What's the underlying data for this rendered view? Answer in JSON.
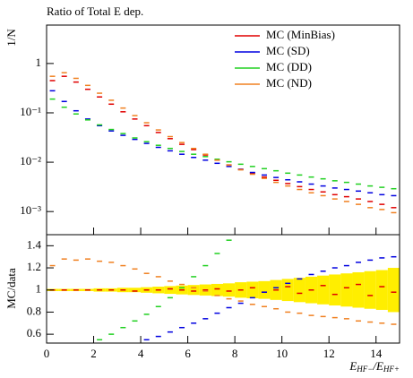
{
  "chart_data": [
    {
      "type": "scatter",
      "title": "Ratio of Total E dep.",
      "ylabel": "1/N",
      "log_y": true,
      "legend": "upper right",
      "x": [
        0.25,
        0.75,
        1.25,
        1.75,
        2.25,
        2.75,
        3.25,
        3.75,
        4.25,
        4.75,
        5.25,
        5.75,
        6.25,
        6.75,
        7.25,
        7.75,
        8.25,
        8.75,
        9.25,
        9.75,
        10.25,
        10.75,
        11.25,
        11.75,
        12.25,
        12.75,
        13.25,
        13.75,
        14.25,
        14.75
      ],
      "xlim": [
        0,
        15
      ],
      "ylim": [
        0.00034,
        6
      ],
      "yticks": [
        1,
        {
          "value": 0.1,
          "label": "10⁻¹"
        },
        {
          "value": 0.01,
          "label": "10⁻²"
        },
        {
          "value": 0.001,
          "label": "10⁻³"
        }
      ],
      "series": [
        {
          "name": "MC (MinBias)",
          "color": "#e00000",
          "values": [
            0.45,
            0.55,
            0.42,
            0.3,
            0.21,
            0.15,
            0.105,
            0.075,
            0.055,
            0.04,
            0.03,
            0.023,
            0.018,
            0.014,
            0.011,
            0.0088,
            0.0072,
            0.006,
            0.005,
            0.0043,
            0.0037,
            0.0032,
            0.0028,
            0.0025,
            0.0022,
            0.002,
            0.0018,
            0.0016,
            0.0014,
            0.0012
          ]
        },
        {
          "name": "MC (SD)",
          "color": "#0000e0",
          "values": [
            0.28,
            0.17,
            0.11,
            0.075,
            0.055,
            0.043,
            0.035,
            0.029,
            0.024,
            0.02,
            0.017,
            0.0145,
            0.0125,
            0.011,
            0.0095,
            0.0082,
            0.0071,
            0.0062,
            0.0055,
            0.0049,
            0.0044,
            0.004,
            0.0036,
            0.0033,
            0.003,
            0.0028,
            0.0026,
            0.0024,
            0.0022,
            0.0021
          ]
        },
        {
          "name": "MC (DD)",
          "color": "#20d020",
          "values": [
            0.19,
            0.13,
            0.095,
            0.072,
            0.057,
            0.046,
            0.038,
            0.031,
            0.026,
            0.022,
            0.019,
            0.0165,
            0.0145,
            0.013,
            0.0115,
            0.0102,
            0.0091,
            0.0082,
            0.0074,
            0.0067,
            0.006,
            0.0055,
            0.005,
            0.0046,
            0.0042,
            0.0039,
            0.0036,
            0.0033,
            0.0031,
            0.0029
          ]
        },
        {
          "name": "MC (ND)",
          "color": "#f08020",
          "values": [
            0.55,
            0.65,
            0.5,
            0.36,
            0.25,
            0.18,
            0.125,
            0.088,
            0.063,
            0.045,
            0.033,
            0.025,
            0.019,
            0.0145,
            0.011,
            0.0087,
            0.007,
            0.0057,
            0.0047,
            0.0039,
            0.0033,
            0.0028,
            0.0024,
            0.0021,
            0.0018,
            0.0016,
            0.0014,
            0.0012,
            0.0011,
            0.00095
          ]
        }
      ]
    },
    {
      "type": "scatter",
      "ylabel": "MC/data",
      "xlabel": [
        "E",
        "HF−",
        "/E",
        "HF+"
      ],
      "x": [
        0.25,
        0.75,
        1.25,
        1.75,
        2.25,
        2.75,
        3.25,
        3.75,
        4.25,
        4.75,
        5.25,
        5.75,
        6.25,
        6.75,
        7.25,
        7.75,
        8.25,
        8.75,
        9.25,
        9.75,
        10.25,
        10.75,
        11.25,
        11.75,
        12.25,
        12.75,
        13.25,
        13.75,
        14.25,
        14.75
      ],
      "xlim": [
        0,
        15
      ],
      "xticks": [
        0,
        2,
        4,
        6,
        8,
        10,
        12,
        14
      ],
      "ylim": [
        0.52,
        1.5
      ],
      "yticks": [
        0.6,
        0.8,
        1,
        1.2,
        1.4
      ],
      "band": {
        "color": "#ffee00",
        "values": [
          1,
          1,
          1,
          1,
          1,
          1,
          1,
          1,
          1,
          1,
          1,
          1,
          1,
          1,
          1,
          1,
          1,
          1,
          1,
          1,
          1,
          1,
          1,
          1,
          1,
          1,
          1,
          1,
          1,
          1
        ],
        "errors": [
          0.01,
          0.01,
          0.01,
          0.01,
          0.015,
          0.015,
          0.02,
          0.02,
          0.025,
          0.03,
          0.035,
          0.04,
          0.045,
          0.05,
          0.055,
          0.06,
          0.07,
          0.075,
          0.08,
          0.09,
          0.1,
          0.11,
          0.12,
          0.13,
          0.14,
          0.15,
          0.16,
          0.17,
          0.18,
          0.2
        ]
      },
      "series": [
        {
          "name": "MC (MinBias)",
          "color": "#e00000",
          "values": [
            1,
            1,
            1,
            1,
            1,
            1,
            1,
            0.99,
            1,
            1,
            1.01,
            1,
            0.99,
            1,
            1.01,
            0.99,
            1,
            1.02,
            0.98,
            1,
            1.03,
            0.97,
            1,
            1.04,
            0.96,
            1.02,
            1.05,
            0.95,
            1.03,
            0.98
          ]
        },
        {
          "name": "MC (SD)",
          "color": "#0000e0",
          "values": [
            null,
            null,
            null,
            null,
            null,
            null,
            null,
            null,
            0.55,
            0.58,
            0.62,
            0.66,
            0.7,
            0.74,
            0.79,
            0.84,
            0.88,
            0.93,
            0.98,
            1.02,
            1.06,
            1.1,
            1.14,
            1.17,
            1.2,
            1.22,
            1.25,
            1.27,
            1.29,
            1.3
          ]
        },
        {
          "name": "MC (DD)",
          "color": "#20d020",
          "values": [
            null,
            null,
            null,
            null,
            0.55,
            0.6,
            0.66,
            0.72,
            0.78,
            0.85,
            0.93,
            1.02,
            1.12,
            1.22,
            1.33,
            1.45,
            null,
            null,
            null,
            null,
            null,
            null,
            null,
            null,
            null,
            null,
            null,
            null,
            null,
            null
          ]
        },
        {
          "name": "MC (ND)",
          "color": "#f08020",
          "values": [
            1.22,
            1.28,
            1.27,
            1.28,
            1.26,
            1.25,
            1.22,
            1.19,
            1.15,
            1.12,
            1.08,
            1.05,
            1.02,
            0.99,
            0.95,
            0.92,
            0.9,
            0.87,
            0.85,
            0.83,
            0.8,
            0.79,
            0.77,
            0.76,
            0.75,
            0.74,
            0.72,
            0.71,
            0.7,
            0.69
          ]
        }
      ]
    }
  ]
}
